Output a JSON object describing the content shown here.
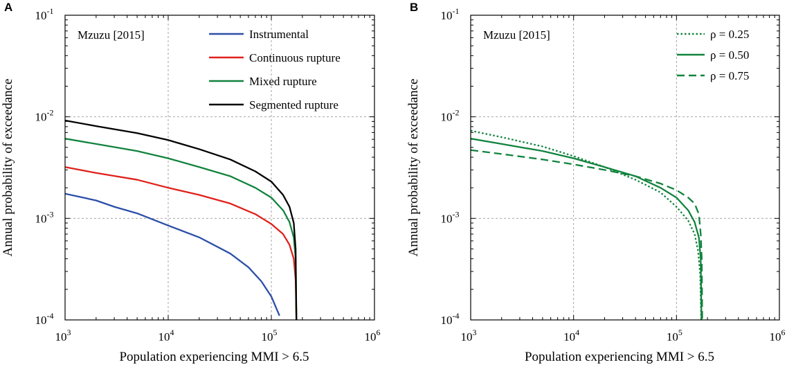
{
  "chart_data": [
    {
      "panel": "A",
      "type": "line",
      "scale": "log-log",
      "annotation": "Mzuzu [2015]",
      "xlabel": "Population experiencing MMI > 6.5",
      "ylabel": "Annual probability of exceedance",
      "xlim": [
        1000,
        1000000
      ],
      "ylim": [
        0.0001,
        0.1
      ],
      "grid": true,
      "legend_position": "top-right",
      "x_ticks": [
        {
          "base": "10",
          "exp": "3"
        },
        {
          "base": "10",
          "exp": "4"
        },
        {
          "base": "10",
          "exp": "5"
        },
        {
          "base": "10",
          "exp": "6"
        }
      ],
      "y_ticks": [
        {
          "base": "10",
          "exp": "-4"
        },
        {
          "base": "10",
          "exp": "-3"
        },
        {
          "base": "10",
          "exp": "-2"
        },
        {
          "base": "10",
          "exp": "-1"
        }
      ],
      "series": [
        {
          "name": "Instrumental",
          "color": "#2b4fa8",
          "dash": "solid",
          "points": [
            [
              1000,
              0.00175
            ],
            [
              1500,
              0.0016
            ],
            [
              2000,
              0.0015
            ],
            [
              3000,
              0.0013
            ],
            [
              5000,
              0.00112
            ],
            [
              10000,
              0.00085
            ],
            [
              20000,
              0.00065
            ],
            [
              40000,
              0.00045
            ],
            [
              60000,
              0.00033
            ],
            [
              80000,
              0.00024
            ],
            [
              100000,
              0.00017
            ],
            [
              120000,
              0.00011
            ]
          ]
        },
        {
          "name": "Continuous rupture",
          "color": "#e0201b",
          "dash": "solid",
          "points": [
            [
              1000,
              0.0032
            ],
            [
              2000,
              0.0028
            ],
            [
              5000,
              0.0024
            ],
            [
              10000,
              0.002
            ],
            [
              20000,
              0.0017
            ],
            [
              40000,
              0.0014
            ],
            [
              70000,
              0.0011
            ],
            [
              100000,
              0.00088
            ],
            [
              130000,
              0.0007
            ],
            [
              150000,
              0.00055
            ],
            [
              165000,
              0.0004
            ],
            [
              172000,
              0.00025
            ],
            [
              175000,
              0.0001
            ]
          ]
        },
        {
          "name": "Mixed rupture",
          "color": "#11833d",
          "dash": "solid",
          "points": [
            [
              1000,
              0.0061
            ],
            [
              2000,
              0.0054
            ],
            [
              5000,
              0.0046
            ],
            [
              10000,
              0.0039
            ],
            [
              20000,
              0.0032
            ],
            [
              40000,
              0.0026
            ],
            [
              70000,
              0.002
            ],
            [
              100000,
              0.0016
            ],
            [
              130000,
              0.0012
            ],
            [
              150000,
              0.00092
            ],
            [
              165000,
              0.00065
            ],
            [
              172000,
              0.0004
            ],
            [
              175000,
              0.0001
            ]
          ]
        },
        {
          "name": "Segmented rupture",
          "color": "#000000",
          "dash": "solid",
          "points": [
            [
              1000,
              0.0092
            ],
            [
              2000,
              0.0081
            ],
            [
              5000,
              0.0069
            ],
            [
              10000,
              0.0059
            ],
            [
              20000,
              0.0048
            ],
            [
              40000,
              0.0038
            ],
            [
              70000,
              0.0029
            ],
            [
              100000,
              0.0023
            ],
            [
              130000,
              0.0017
            ],
            [
              150000,
              0.0013
            ],
            [
              165000,
              0.0009
            ],
            [
              172000,
              0.0005
            ],
            [
              175000,
              0.0001
            ]
          ]
        }
      ]
    },
    {
      "panel": "B",
      "type": "line",
      "scale": "log-log",
      "annotation": "Mzuzu [2015]",
      "xlabel": "Population experiencing MMI > 6.5",
      "ylabel": "Annual probability of exceedance",
      "xlim": [
        1000,
        1000000
      ],
      "ylim": [
        0.0001,
        0.1
      ],
      "grid": true,
      "legend_position": "top-right",
      "x_ticks": [
        {
          "base": "10",
          "exp": "3"
        },
        {
          "base": "10",
          "exp": "4"
        },
        {
          "base": "10",
          "exp": "5"
        },
        {
          "base": "10",
          "exp": "6"
        }
      ],
      "y_ticks": [
        {
          "base": "10",
          "exp": "-4"
        },
        {
          "base": "10",
          "exp": "-3"
        },
        {
          "base": "10",
          "exp": "-2"
        },
        {
          "base": "10",
          "exp": "-1"
        }
      ],
      "series": [
        {
          "name": "ρ = 0.25",
          "color": "#11833d",
          "dash": "dotted",
          "points": [
            [
              1000,
              0.0073
            ],
            [
              2000,
              0.0063
            ],
            [
              5000,
              0.0051
            ],
            [
              10000,
              0.0041
            ],
            [
              20000,
              0.0032
            ],
            [
              40000,
              0.0024
            ],
            [
              70000,
              0.0018
            ],
            [
              100000,
              0.0013
            ],
            [
              130000,
              0.00095
            ],
            [
              150000,
              0.0007
            ],
            [
              162000,
              0.00048
            ],
            [
              170000,
              0.00028
            ],
            [
              174000,
              0.0001
            ]
          ]
        },
        {
          "name": "ρ = 0.50",
          "color": "#11833d",
          "dash": "solid",
          "points": [
            [
              1000,
              0.0061
            ],
            [
              2000,
              0.0054
            ],
            [
              5000,
              0.0046
            ],
            [
              10000,
              0.0039
            ],
            [
              20000,
              0.0032
            ],
            [
              40000,
              0.0026
            ],
            [
              70000,
              0.002
            ],
            [
              100000,
              0.0016
            ],
            [
              130000,
              0.0012
            ],
            [
              150000,
              0.00092
            ],
            [
              165000,
              0.00065
            ],
            [
              172000,
              0.0004
            ],
            [
              175000,
              0.0001
            ]
          ]
        },
        {
          "name": "ρ = 0.75",
          "color": "#11833d",
          "dash": "dashed",
          "points": [
            [
              1000,
              0.0047
            ],
            [
              2000,
              0.0043
            ],
            [
              5000,
              0.0038
            ],
            [
              10000,
              0.0034
            ],
            [
              20000,
              0.003
            ],
            [
              40000,
              0.0026
            ],
            [
              70000,
              0.0022
            ],
            [
              100000,
              0.0019
            ],
            [
              130000,
              0.0016
            ],
            [
              150000,
              0.0014
            ],
            [
              165000,
              0.0011
            ],
            [
              172000,
              0.0007
            ],
            [
              176000,
              0.0004
            ],
            [
              178000,
              0.0001
            ]
          ]
        }
      ]
    }
  ]
}
